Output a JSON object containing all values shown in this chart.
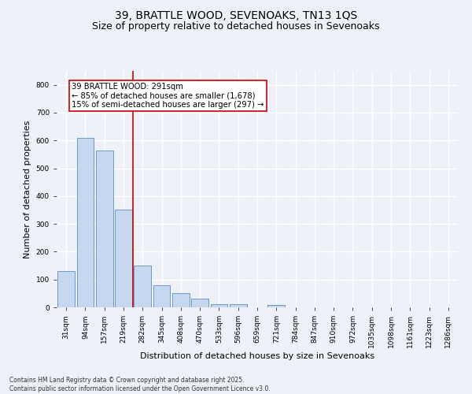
{
  "title_line1": "39, BRATTLE WOOD, SEVENOAKS, TN13 1QS",
  "title_line2": "Size of property relative to detached houses in Sevenoaks",
  "xlabel": "Distribution of detached houses by size in Sevenoaks",
  "ylabel": "Number of detached properties",
  "bar_labels": [
    "31sqm",
    "94sqm",
    "157sqm",
    "219sqm",
    "282sqm",
    "345sqm",
    "408sqm",
    "470sqm",
    "533sqm",
    "596sqm",
    "659sqm",
    "721sqm",
    "784sqm",
    "847sqm",
    "910sqm",
    "972sqm",
    "1035sqm",
    "1098sqm",
    "1161sqm",
    "1223sqm",
    "1286sqm"
  ],
  "bar_values": [
    130,
    608,
    565,
    352,
    150,
    78,
    50,
    32,
    12,
    12,
    0,
    8,
    0,
    0,
    0,
    0,
    0,
    0,
    0,
    0,
    0
  ],
  "bar_color": "#c5d8f0",
  "bar_edge_color": "#5b8ec4",
  "vline_x": 4.0,
  "vline_color": "#cc0000",
  "annotation_text": "39 BRATTLE WOOD: 291sqm\n← 85% of detached houses are smaller (1,678)\n15% of semi-detached houses are larger (297) →",
  "annotation_box_color": "#ffffff",
  "annotation_border_color": "#cc0000",
  "ylim": [
    0,
    850
  ],
  "yticks": [
    0,
    100,
    200,
    300,
    400,
    500,
    600,
    700,
    800
  ],
  "footer_line1": "Contains HM Land Registry data © Crown copyright and database right 2025.",
  "footer_line2": "Contains public sector information licensed under the Open Government Licence v3.0.",
  "background_color": "#eef2f8",
  "plot_bg_color": "#eef2f8",
  "grid_color": "#ffffff",
  "title_fontsize": 10,
  "subtitle_fontsize": 9,
  "axis_label_fontsize": 8,
  "tick_fontsize": 6.5,
  "footer_fontsize": 5.5,
  "annotation_fontsize": 7.2
}
